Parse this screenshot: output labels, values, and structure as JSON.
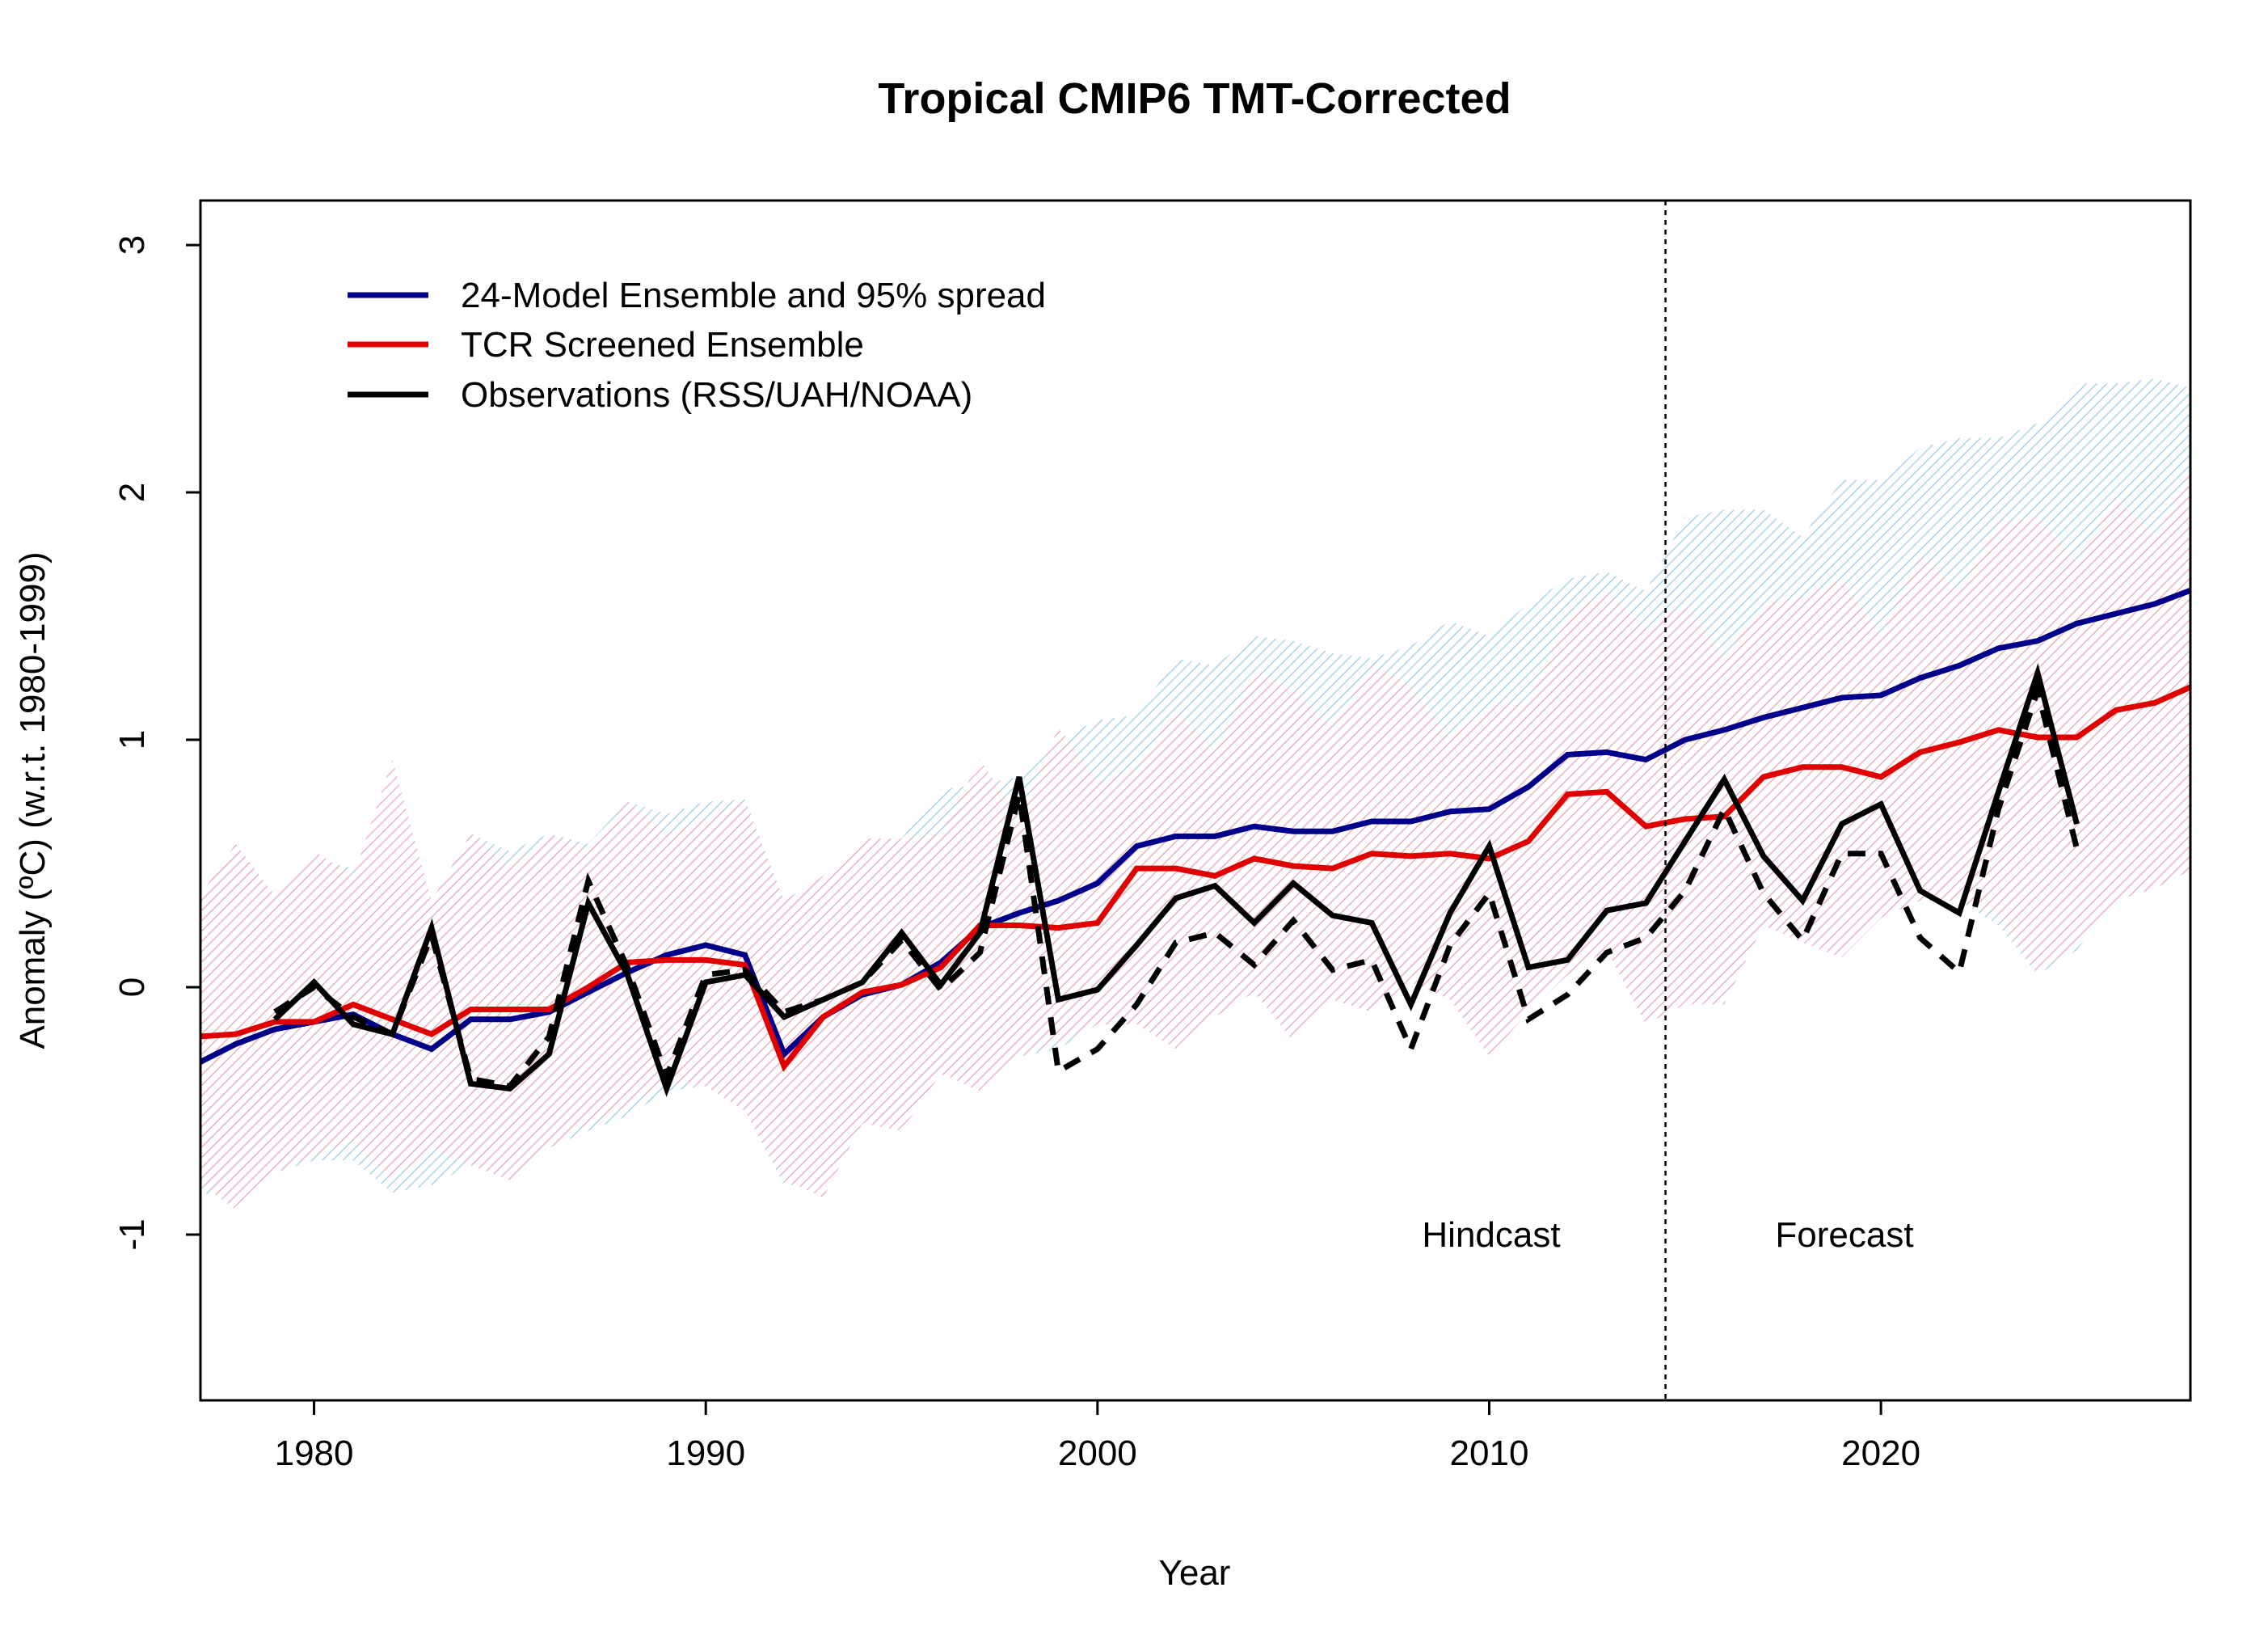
{
  "chart_data": {
    "type": "line",
    "title": "Tropical CMIP6 TMT-Corrected",
    "xlabel": "Year",
    "ylabel": "Anomaly (ºC) (w.r.t. 1980-1999)",
    "xlim": [
      1977.1,
      2027.9
    ],
    "ylim": [
      -1.67,
      3.18
    ],
    "xticks": [
      1980,
      1990,
      2000,
      2010,
      2020
    ],
    "yticks": [
      -1,
      0,
      1,
      2,
      3
    ],
    "grid": false,
    "legend_position": "top-left",
    "legend": [
      {
        "label": "24-Model Ensemble and 95% spread",
        "color": "#00008b"
      },
      {
        "label": "TCR Screened Ensemble",
        "color": "#e00000"
      },
      {
        "label": "Observations (RSS/UAH/NOAA)",
        "color": "#000000"
      }
    ],
    "annotations": {
      "divider_year": 2014.5,
      "left_label": "Hindcast",
      "right_label": "Forecast"
    },
    "colors": {
      "blue_band": "#a8d4e6",
      "red_band": "#f2b5c0"
    },
    "model_years_start": 1977,
    "series": [
      {
        "name": "24-Model Ensemble and 95% spread",
        "color": "#00008b",
        "values": [
          -0.31,
          -0.23,
          -0.17,
          -0.14,
          -0.11,
          -0.19,
          -0.25,
          -0.13,
          -0.13,
          -0.1,
          -0.02,
          0.06,
          0.13,
          0.17,
          0.13,
          -0.27,
          -0.12,
          -0.03,
          0.01,
          0.1,
          0.24,
          0.3,
          0.35,
          0.42,
          0.57,
          0.61,
          0.61,
          0.65,
          0.63,
          0.63,
          0.67,
          0.67,
          0.71,
          0.72,
          0.81,
          0.94,
          0.95,
          0.92,
          1.0,
          1.04,
          1.09,
          1.13,
          1.17,
          1.18,
          1.25,
          1.3,
          1.37,
          1.4,
          1.47,
          1.51,
          1.55,
          1.61
        ],
        "upper": [
          0.35,
          0.58,
          0.37,
          0.52,
          0.48,
          0.42,
          0.35,
          0.62,
          0.55,
          0.62,
          0.58,
          0.75,
          0.7,
          0.75,
          0.76,
          0.35,
          0.45,
          0.6,
          0.6,
          0.8,
          0.82,
          0.85,
          1.0,
          1.08,
          1.1,
          1.33,
          1.3,
          1.42,
          1.4,
          1.35,
          1.33,
          1.38,
          1.48,
          1.42,
          1.55,
          1.65,
          1.68,
          1.6,
          1.9,
          1.93,
          1.93,
          1.82,
          2.05,
          2.05,
          2.18,
          2.22,
          2.22,
          2.28,
          2.44,
          2.44,
          2.46,
          2.42
        ],
        "lower": [
          -0.83,
          -0.85,
          -0.75,
          -0.7,
          -0.7,
          -0.83,
          -0.8,
          -0.72,
          -0.78,
          -0.65,
          -0.58,
          -0.52,
          -0.42,
          -0.4,
          -0.5,
          -0.8,
          -0.8,
          -0.55,
          -0.55,
          -0.35,
          -0.4,
          -0.28,
          -0.25,
          -0.15,
          -0.15,
          -0.22,
          -0.12,
          -0.02,
          -0.2,
          -0.05,
          -0.1,
          0.05,
          -0.05,
          -0.25,
          -0.1,
          0.05,
          0.15,
          -0.15,
          -0.05,
          -0.05,
          0.25,
          0.2,
          0.12,
          0.3,
          0.35,
          0.35,
          0.25,
          0.05,
          0.15,
          0.35,
          0.4,
          0.48
        ]
      },
      {
        "name": "TCR Screened Ensemble",
        "color": "#e00000",
        "values": [
          -0.2,
          -0.19,
          -0.14,
          -0.14,
          -0.07,
          -0.13,
          -0.19,
          -0.09,
          -0.09,
          -0.09,
          0.0,
          0.1,
          0.11,
          0.11,
          0.09,
          -0.32,
          -0.12,
          -0.02,
          0.01,
          0.08,
          0.25,
          0.25,
          0.24,
          0.26,
          0.48,
          0.48,
          0.45,
          0.52,
          0.49,
          0.48,
          0.54,
          0.53,
          0.54,
          0.52,
          0.59,
          0.78,
          0.79,
          0.65,
          0.68,
          0.69,
          0.85,
          0.89,
          0.89,
          0.85,
          0.95,
          0.99,
          1.04,
          1.01,
          1.01,
          1.12,
          1.15,
          1.22
        ],
        "upper": [
          0.35,
          0.58,
          0.37,
          0.55,
          0.45,
          0.92,
          0.35,
          0.62,
          0.48,
          0.62,
          0.55,
          0.75,
          0.62,
          0.68,
          0.75,
          0.35,
          0.45,
          0.6,
          0.6,
          0.62,
          0.92,
          0.68,
          1.05,
          0.83,
          0.88,
          1.12,
          0.95,
          1.28,
          1.2,
          1.05,
          1.3,
          1.22,
          1.0,
          1.14,
          1.15,
          1.5,
          1.6,
          1.45,
          1.55,
          1.33,
          1.55,
          1.58,
          1.65,
          1.42,
          1.75,
          1.6,
          1.88,
          1.9,
          1.72,
          1.98,
          1.82,
          2.12
        ],
        "lower": [
          -0.78,
          -0.9,
          -0.75,
          -0.68,
          -0.62,
          -0.78,
          -0.65,
          -0.72,
          -0.78,
          -0.65,
          -0.55,
          -0.48,
          -0.38,
          -0.4,
          -0.5,
          -0.78,
          -0.85,
          -0.55,
          -0.58,
          -0.35,
          -0.42,
          -0.28,
          -0.22,
          -0.15,
          -0.15,
          -0.25,
          -0.12,
          -0.02,
          -0.22,
          -0.05,
          -0.1,
          0.02,
          -0.05,
          -0.28,
          -0.1,
          0.05,
          0.15,
          -0.15,
          -0.07,
          -0.07,
          0.25,
          0.18,
          0.12,
          0.28,
          0.35,
          0.35,
          0.3,
          0.05,
          0.18,
          0.35,
          0.4,
          0.48
        ]
      },
      {
        "name": "Observations (RSS/UAH/NOAA)",
        "color": "#000000",
        "style": "solid",
        "start": 1979,
        "values": [
          -0.13,
          0.02,
          -0.15,
          -0.19,
          0.24,
          -0.39,
          -0.41,
          -0.27,
          0.34,
          0.05,
          -0.41,
          0.02,
          0.05,
          -0.12,
          -0.05,
          0.02,
          0.22,
          0.01,
          0.22,
          0.85,
          -0.05,
          -0.01,
          0.17,
          0.36,
          0.41,
          0.26,
          0.42,
          0.29,
          0.26,
          -0.07,
          0.3,
          0.57,
          0.08,
          0.11,
          0.31,
          0.34,
          0.59,
          0.84,
          0.53,
          0.35,
          0.66,
          0.74,
          0.39,
          0.3,
          0.79,
          1.27,
          0.66
        ]
      },
      {
        "color": "#000000",
        "style": "dashed",
        "start": 1979,
        "values": [
          -0.1,
          0.0,
          -0.12,
          -0.19,
          0.21,
          -0.37,
          -0.4,
          -0.2,
          0.43,
          0.08,
          -0.36,
          0.05,
          0.07,
          -0.1,
          -0.05,
          0.02,
          0.19,
          -0.01,
          0.14,
          0.78,
          -0.34,
          -0.25,
          -0.07,
          0.18,
          0.22,
          0.09,
          0.27,
          0.07,
          0.11,
          -0.25,
          0.17,
          0.38,
          -0.13,
          -0.03,
          0.14,
          0.2,
          0.39,
          0.72,
          0.38,
          0.19,
          0.54,
          0.54,
          0.2,
          0.06,
          0.72,
          1.2,
          0.56
        ]
      }
    ]
  }
}
